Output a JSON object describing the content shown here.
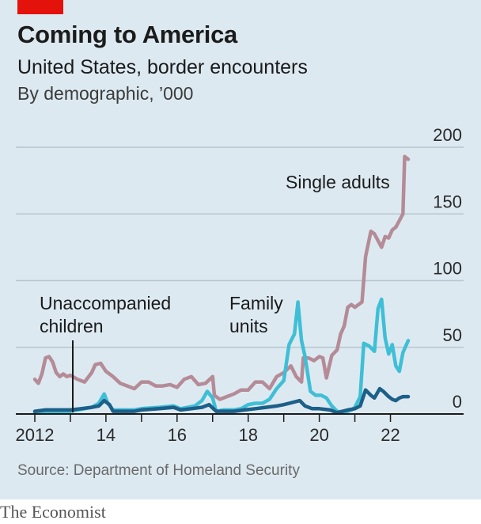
{
  "header": {
    "title": "Coming to America",
    "subtitle": "United States, border encounters",
    "units": "By demographic, ’000"
  },
  "footer": {
    "source": "Source: Department of Homeland Security",
    "brand": "The Economist"
  },
  "colors": {
    "background": "#dde9f1",
    "accent_tag": "#e3120b",
    "single_adults": "#b48b96",
    "family_units": "#3fbfd6",
    "unaccompanied_children": "#1c5f89",
    "gridline": "#b7c6d0",
    "axis": "#1b1b1b"
  },
  "chart_data": {
    "type": "line",
    "title": "Coming to America",
    "subtitle": "United States, border encounters",
    "ylabel": "By demographic, ’000",
    "ylim": [
      0,
      200
    ],
    "xlim": [
      2011.9,
      2022.4
    ],
    "y_ticks": [
      0,
      50,
      100,
      150,
      200
    ],
    "y_tick_labels": [
      "0",
      "50",
      "100",
      "150",
      "200"
    ],
    "y_axis_position": "right",
    "x_ticks": [
      2012,
      2014,
      2016,
      2018,
      2020,
      2022
    ],
    "x_tick_labels": [
      "2012",
      "14",
      "16",
      "18",
      "20",
      "22"
    ],
    "grid": true,
    "legend": "direct labels",
    "series": [
      {
        "name": "Single adults",
        "label_text": "Single adults",
        "color": "#b48b96",
        "points": [
          [
            2012.0,
            26
          ],
          [
            2012.1,
            23
          ],
          [
            2012.2,
            30
          ],
          [
            2012.3,
            42
          ],
          [
            2012.4,
            43
          ],
          [
            2012.5,
            39
          ],
          [
            2012.6,
            31
          ],
          [
            2012.7,
            28
          ],
          [
            2012.8,
            30
          ],
          [
            2012.9,
            28
          ],
          [
            2013.0,
            29
          ],
          [
            2013.2,
            26
          ],
          [
            2013.4,
            24
          ],
          [
            2013.6,
            31
          ],
          [
            2013.7,
            37
          ],
          [
            2013.85,
            38
          ],
          [
            2014.0,
            32
          ],
          [
            2014.2,
            28
          ],
          [
            2014.4,
            23
          ],
          [
            2014.6,
            21
          ],
          [
            2014.8,
            19
          ],
          [
            2015.0,
            24
          ],
          [
            2015.2,
            24
          ],
          [
            2015.4,
            21
          ],
          [
            2015.6,
            21
          ],
          [
            2015.8,
            22
          ],
          [
            2016.0,
            20
          ],
          [
            2016.2,
            26
          ],
          [
            2016.4,
            28
          ],
          [
            2016.6,
            22
          ],
          [
            2016.8,
            23
          ],
          [
            2017.0,
            28
          ],
          [
            2017.05,
            14
          ],
          [
            2017.2,
            11
          ],
          [
            2017.4,
            13
          ],
          [
            2017.6,
            15
          ],
          [
            2017.8,
            18
          ],
          [
            2018.0,
            18
          ],
          [
            2018.2,
            24
          ],
          [
            2018.4,
            24
          ],
          [
            2018.6,
            19
          ],
          [
            2018.8,
            28
          ],
          [
            2019.0,
            31
          ],
          [
            2019.2,
            36
          ],
          [
            2019.35,
            28
          ],
          [
            2019.5,
            24
          ],
          [
            2019.55,
            42
          ],
          [
            2019.7,
            42
          ],
          [
            2019.85,
            40
          ],
          [
            2020.0,
            43
          ],
          [
            2020.1,
            42
          ],
          [
            2020.2,
            27
          ],
          [
            2020.35,
            44
          ],
          [
            2020.5,
            48
          ],
          [
            2020.6,
            60
          ],
          [
            2020.7,
            66
          ],
          [
            2020.8,
            80
          ],
          [
            2020.9,
            82
          ],
          [
            2021.0,
            80
          ],
          [
            2021.1,
            82
          ],
          [
            2021.2,
            84
          ],
          [
            2021.3,
            118
          ],
          [
            2021.45,
            137
          ],
          [
            2021.55,
            135
          ],
          [
            2021.65,
            130
          ],
          [
            2021.75,
            125
          ],
          [
            2021.85,
            133
          ],
          [
            2021.95,
            132
          ],
          [
            2022.05,
            138
          ],
          [
            2022.15,
            140
          ],
          [
            2022.25,
            145
          ],
          [
            2022.35,
            150
          ],
          [
            2022.4,
            193
          ],
          [
            2022.5,
            191
          ]
        ]
      },
      {
        "name": "Family units",
        "label_text": "Family units",
        "color": "#3fbfd6",
        "points": [
          [
            2012.0,
            1
          ],
          [
            2012.5,
            1
          ],
          [
            2013.0,
            2
          ],
          [
            2013.4,
            4
          ],
          [
            2013.6,
            5
          ],
          [
            2013.8,
            8
          ],
          [
            2013.95,
            15
          ],
          [
            2014.05,
            8
          ],
          [
            2014.2,
            3
          ],
          [
            2014.5,
            3
          ],
          [
            2014.8,
            3
          ],
          [
            2015.0,
            4
          ],
          [
            2015.5,
            5
          ],
          [
            2015.9,
            6
          ],
          [
            2016.1,
            4
          ],
          [
            2016.3,
            5
          ],
          [
            2016.5,
            6
          ],
          [
            2016.7,
            10
          ],
          [
            2016.85,
            17
          ],
          [
            2017.0,
            12
          ],
          [
            2017.1,
            2
          ],
          [
            2017.3,
            3
          ],
          [
            2017.6,
            3
          ],
          [
            2017.8,
            4
          ],
          [
            2018.0,
            7
          ],
          [
            2018.2,
            8
          ],
          [
            2018.4,
            8
          ],
          [
            2018.6,
            11
          ],
          [
            2018.8,
            19
          ],
          [
            2019.0,
            25
          ],
          [
            2019.15,
            52
          ],
          [
            2019.3,
            60
          ],
          [
            2019.4,
            84
          ],
          [
            2019.5,
            55
          ],
          [
            2019.6,
            43
          ],
          [
            2019.75,
            17
          ],
          [
            2019.9,
            14
          ],
          [
            2020.05,
            14
          ],
          [
            2020.2,
            12
          ],
          [
            2020.35,
            6
          ],
          [
            2020.5,
            2
          ],
          [
            2020.7,
            1
          ],
          [
            2020.9,
            3
          ],
          [
            2021.0,
            5
          ],
          [
            2021.15,
            13
          ],
          [
            2021.25,
            53
          ],
          [
            2021.4,
            51
          ],
          [
            2021.55,
            47
          ],
          [
            2021.65,
            79
          ],
          [
            2021.75,
            86
          ],
          [
            2021.85,
            57
          ],
          [
            2021.95,
            45
          ],
          [
            2022.05,
            52
          ],
          [
            2022.15,
            36
          ],
          [
            2022.25,
            32
          ],
          [
            2022.35,
            46
          ],
          [
            2022.5,
            55
          ]
        ]
      },
      {
        "name": "Unaccompanied children",
        "label_text": "Unaccompanied children",
        "color": "#1c5f89",
        "points": [
          [
            2012.0,
            2
          ],
          [
            2012.3,
            3
          ],
          [
            2012.6,
            3
          ],
          [
            2013.0,
            3
          ],
          [
            2013.3,
            4
          ],
          [
            2013.6,
            5
          ],
          [
            2013.8,
            6
          ],
          [
            2013.95,
            10
          ],
          [
            2014.1,
            7
          ],
          [
            2014.2,
            2
          ],
          [
            2014.5,
            2
          ],
          [
            2014.8,
            2
          ],
          [
            2015.0,
            3
          ],
          [
            2015.5,
            4
          ],
          [
            2015.9,
            5
          ],
          [
            2016.1,
            3
          ],
          [
            2016.4,
            4
          ],
          [
            2016.7,
            5
          ],
          [
            2016.9,
            7
          ],
          [
            2017.1,
            2
          ],
          [
            2017.3,
            2
          ],
          [
            2017.6,
            2
          ],
          [
            2017.9,
            3
          ],
          [
            2018.2,
            4
          ],
          [
            2018.5,
            5
          ],
          [
            2018.8,
            6
          ],
          [
            2019.0,
            7
          ],
          [
            2019.3,
            9
          ],
          [
            2019.45,
            10
          ],
          [
            2019.6,
            6
          ],
          [
            2019.8,
            4
          ],
          [
            2020.0,
            4
          ],
          [
            2020.3,
            3
          ],
          [
            2020.5,
            1
          ],
          [
            2020.8,
            3
          ],
          [
            2021.0,
            4
          ],
          [
            2021.15,
            6
          ],
          [
            2021.3,
            18
          ],
          [
            2021.45,
            14
          ],
          [
            2021.55,
            12
          ],
          [
            2021.7,
            19
          ],
          [
            2021.8,
            17
          ],
          [
            2021.95,
            13
          ],
          [
            2022.05,
            11
          ],
          [
            2022.15,
            10
          ],
          [
            2022.25,
            12
          ],
          [
            2022.35,
            13
          ],
          [
            2022.5,
            13
          ]
        ]
      }
    ]
  }
}
